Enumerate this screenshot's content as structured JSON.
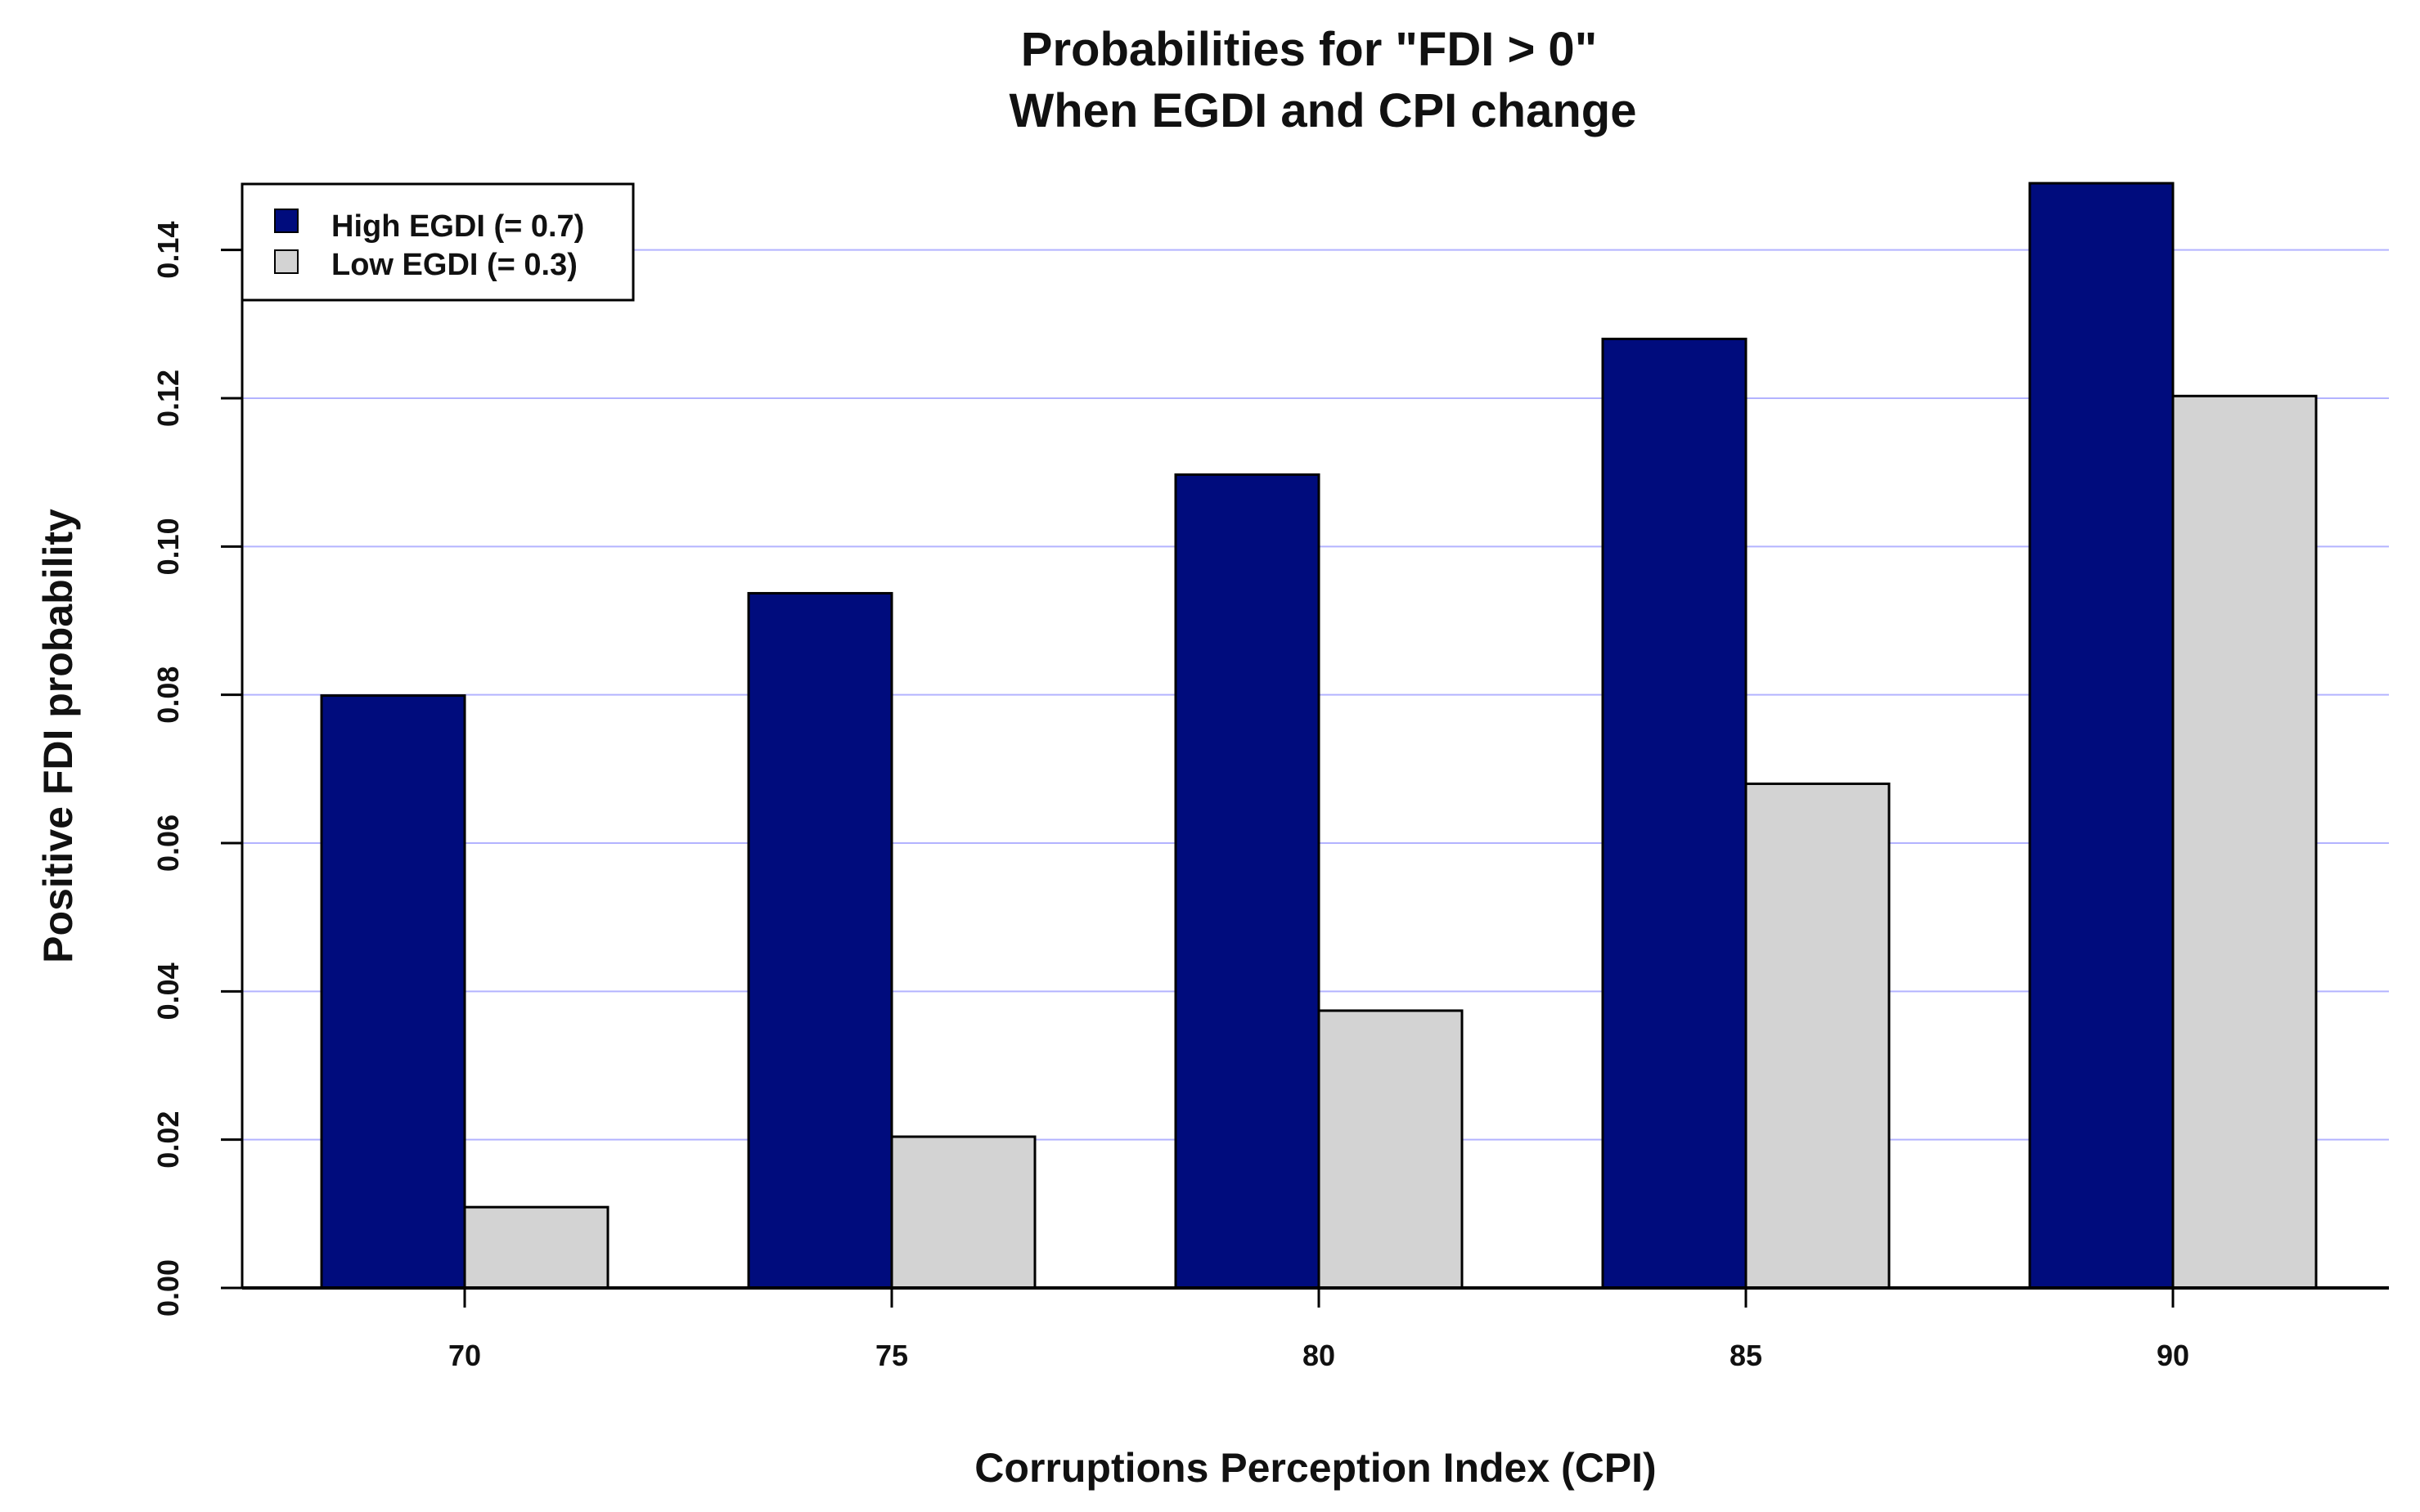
{
  "chart_data": {
    "type": "bar",
    "title_lines": [
      "Probabilities for \"FDI > 0\"",
      "When EGDI and CPI change"
    ],
    "xlabel": "Corruptions Perception Index (CPI)",
    "ylabel": "Positive FDI probability",
    "categories": [
      "70",
      "75",
      "80",
      "85",
      "90"
    ],
    "series": [
      {
        "name": "High EGDI (= 0.7)",
        "color": "#000C7D",
        "values": [
          0.0799,
          0.0937,
          0.1097,
          0.128,
          0.149
        ]
      },
      {
        "name": "Low EGDI (= 0.3)",
        "color": "#D3D3D3",
        "values": [
          0.0109,
          0.0204,
          0.0374,
          0.068,
          0.1203
        ]
      }
    ],
    "yticks": [
      "0.00",
      "0.02",
      "0.04",
      "0.06",
      "0.08",
      "0.10",
      "0.12",
      "0.14"
    ],
    "ylim": [
      0,
      0.15
    ],
    "grid": true,
    "grid_color": "#B3B3FF",
    "legend_position": "top-left"
  }
}
